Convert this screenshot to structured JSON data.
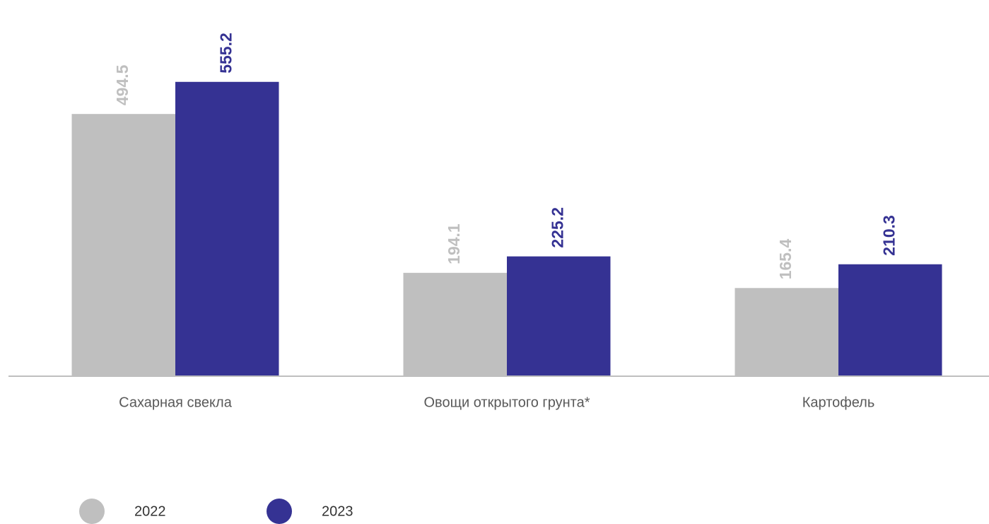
{
  "chart_data": {
    "type": "bar",
    "categories": [
      "Сахарная свекла",
      "Овощи открытого грунта*",
      "Картофель"
    ],
    "series": [
      {
        "name": "2022",
        "color": "#bfbfbf",
        "values": [
          494.5,
          194.1,
          165.4
        ]
      },
      {
        "name": "2023",
        "color": "#353293",
        "values": [
          555.2,
          225.2,
          210.3
        ]
      }
    ],
    "ylim": [
      0,
      710
    ]
  }
}
